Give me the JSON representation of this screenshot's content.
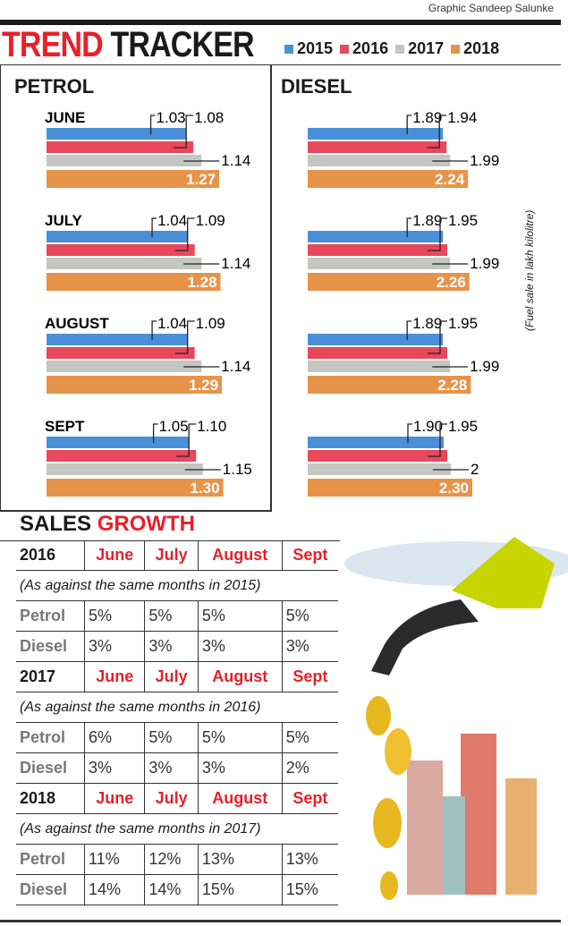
{
  "credit": "Graphic Sandeep Salunke",
  "title": {
    "part1": "TREND",
    "part2": "TRACKER"
  },
  "legend": [
    {
      "label": "2015",
      "color": "#4a90d9"
    },
    {
      "label": "2016",
      "color": "#e8485c"
    },
    {
      "label": "2017",
      "color": "#c4c6c2"
    },
    {
      "label": "2018",
      "color": "#e8934a"
    }
  ],
  "unit_note": "(Fuel sale in lakh kilolitre)",
  "chart_data": [
    {
      "type": "bar",
      "title": "PETROL",
      "categories": [
        "JUNE",
        "JULY",
        "AUGUST",
        "SEPT"
      ],
      "series": [
        {
          "name": "2015",
          "values": [
            1.03,
            1.04,
            1.04,
            1.05
          ]
        },
        {
          "name": "2016",
          "values": [
            1.08,
            1.09,
            1.09,
            1.1
          ]
        },
        {
          "name": "2017",
          "values": [
            1.14,
            1.14,
            1.14,
            1.15
          ]
        },
        {
          "name": "2018",
          "values": [
            1.27,
            1.28,
            1.29,
            1.3
          ]
        }
      ],
      "labels": [
        [
          "1.03",
          "1.08",
          "1.14",
          "1.27"
        ],
        [
          "1.04",
          "1.09",
          "1.14",
          "1.28"
        ],
        [
          "1.04",
          "1.09",
          "1.14",
          "1.29"
        ],
        [
          "1.05",
          "1.10",
          "1.15",
          "1.30"
        ]
      ]
    },
    {
      "type": "bar",
      "title": "DIESEL",
      "categories": [
        "",
        "",
        "",
        ""
      ],
      "series": [
        {
          "name": "2015",
          "values": [
            1.89,
            1.89,
            1.89,
            1.9
          ]
        },
        {
          "name": "2016",
          "values": [
            1.94,
            1.95,
            1.95,
            1.95
          ]
        },
        {
          "name": "2017",
          "values": [
            1.99,
            1.99,
            1.99,
            2
          ]
        },
        {
          "name": "2018",
          "values": [
            2.24,
            2.26,
            2.28,
            2.3
          ]
        }
      ],
      "labels": [
        [
          "1.89",
          "1.94",
          "1.99",
          "2.24"
        ],
        [
          "1.89",
          "1.95",
          "1.99",
          "2.26"
        ],
        [
          "1.89",
          "1.95",
          "1.99",
          "2.28"
        ],
        [
          "1.90",
          "1.95",
          "2",
          "2.30"
        ]
      ]
    }
  ],
  "sales_growth": {
    "title1": "SALES",
    "title2": "GROWTH",
    "blocks": [
      {
        "year": "2016",
        "months": [
          "June",
          "July",
          "August",
          "Sept"
        ],
        "note": "(As against the same months in 2015)",
        "rows": [
          {
            "fuel": "Petrol",
            "values": [
              "5%",
              "5%",
              "5%",
              "5%"
            ]
          },
          {
            "fuel": "Diesel",
            "values": [
              "3%",
              "3%",
              "3%",
              "3%"
            ]
          }
        ]
      },
      {
        "year": "2017",
        "months": [
          "June",
          "July",
          "August",
          "Sept"
        ],
        "note": "(As against the same months in 2016)",
        "rows": [
          {
            "fuel": "Petrol",
            "values": [
              "6%",
              "5%",
              "5%",
              "5%"
            ]
          },
          {
            "fuel": "Diesel",
            "values": [
              "3%",
              "3%",
              "3%",
              "2%"
            ]
          }
        ]
      },
      {
        "year": "2018",
        "months": [
          "June",
          "July",
          "August",
          "Sept"
        ],
        "note": "(As against the same months in 2017)",
        "rows": [
          {
            "fuel": "Petrol",
            "values": [
              "11%",
              "12%",
              "13%",
              "13%"
            ]
          },
          {
            "fuel": "Diesel",
            "values": [
              "14%",
              "14%",
              "15%",
              "15%"
            ]
          }
        ]
      }
    ]
  }
}
